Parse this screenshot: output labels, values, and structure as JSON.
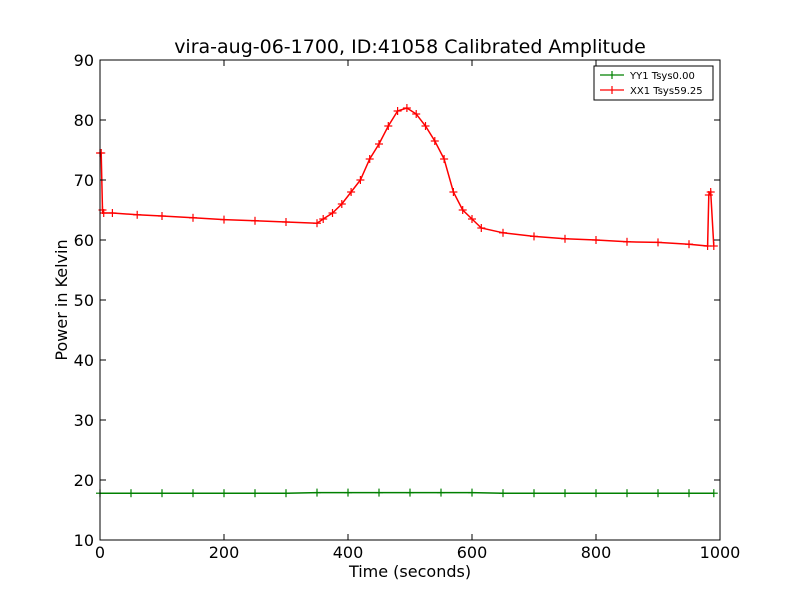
{
  "chart_data": {
    "type": "line",
    "title": "vira-aug-06-1700, ID:41058 Calibrated Amplitude",
    "xlabel": "Time (seconds)",
    "ylabel": "Power in Kelvin",
    "xlim": [
      0,
      1000
    ],
    "ylim": [
      10,
      90
    ],
    "xticks": [
      "0",
      "200",
      "400",
      "600",
      "800",
      "1000"
    ],
    "yticks": [
      "10",
      "20",
      "30",
      "40",
      "50",
      "60",
      "70",
      "80",
      "90"
    ],
    "grid": false,
    "legend_position": "top-right",
    "series": [
      {
        "name": "YY1 Tsys0.00",
        "color": "#008000",
        "marker": "plus",
        "x": [
          0,
          50,
          100,
          150,
          200,
          250,
          300,
          350,
          400,
          450,
          500,
          550,
          600,
          650,
          700,
          750,
          800,
          850,
          900,
          950,
          990
        ],
        "y": [
          17.8,
          17.8,
          17.8,
          17.8,
          17.8,
          17.8,
          17.8,
          17.9,
          17.9,
          17.9,
          17.9,
          17.9,
          17.9,
          17.8,
          17.8,
          17.8,
          17.8,
          17.8,
          17.8,
          17.8,
          17.8
        ]
      },
      {
        "name": "XX1 Tsys59.25",
        "color": "#ff0000",
        "marker": "plus",
        "x": [
          0,
          2,
          4,
          6,
          20,
          60,
          100,
          150,
          200,
          250,
          300,
          350,
          360,
          375,
          390,
          405,
          420,
          435,
          450,
          465,
          480,
          495,
          510,
          525,
          540,
          555,
          570,
          585,
          600,
          615,
          650,
          700,
          750,
          800,
          850,
          900,
          950,
          980,
          982,
          985,
          990
        ],
        "y": [
          74.5,
          74.5,
          65.0,
          64.5,
          64.5,
          64.2,
          64.0,
          63.7,
          63.4,
          63.2,
          63.0,
          62.8,
          63.5,
          64.5,
          66.0,
          68.0,
          70.0,
          73.5,
          76.0,
          79.0,
          81.5,
          82.0,
          81.0,
          79.0,
          76.5,
          73.5,
          68.0,
          65.0,
          63.5,
          62.0,
          61.2,
          60.6,
          60.2,
          60.0,
          59.7,
          59.6,
          59.3,
          59.0,
          67.5,
          68.0,
          59.0
        ]
      }
    ]
  }
}
